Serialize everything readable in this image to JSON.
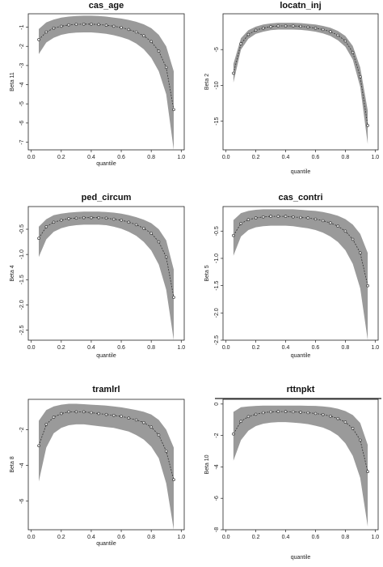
{
  "figure": {
    "colors": {
      "band": "#9a9a9a",
      "line": "#333333",
      "frame": "#222222",
      "background": "#ffffff"
    }
  },
  "chart_data": [
    {
      "type": "line",
      "title": "cas_age",
      "xlabel": "quantile",
      "ylabel": "Beta 11",
      "xlim": [
        -0.02,
        1.02
      ],
      "ylim": [
        -7.4,
        -0.3
      ],
      "xticks": [
        0.0,
        0.2,
        0.4,
        0.6,
        0.8,
        1.0
      ],
      "xtick_labels": [
        "0.0",
        "0.2",
        "0.4",
        "0.6",
        "0.8",
        "1.0"
      ],
      "yticks": [
        -1,
        -2,
        -3,
        -4,
        -5,
        -6,
        -7
      ],
      "ytick_labels": [
        "-1",
        "-2",
        "-3",
        "-4",
        "-5",
        "-6",
        "-7"
      ],
      "x": [
        0.05,
        0.1,
        0.15,
        0.2,
        0.25,
        0.3,
        0.35,
        0.4,
        0.45,
        0.5,
        0.55,
        0.6,
        0.65,
        0.7,
        0.75,
        0.8,
        0.85,
        0.9,
        0.95
      ],
      "series": [
        {
          "values": [
            -1.65,
            -1.25,
            -1.05,
            -0.95,
            -0.88,
            -0.85,
            -0.84,
            -0.84,
            -0.86,
            -0.9,
            -0.95,
            -1.02,
            -1.12,
            -1.25,
            -1.45,
            -1.75,
            -2.25,
            -3.1,
            -5.3
          ]
        }
      ],
      "band_upper": [
        -1.1,
        -0.75,
        -0.6,
        -0.5,
        -0.45,
        -0.42,
        -0.4,
        -0.4,
        -0.42,
        -0.45,
        -0.5,
        -0.55,
        -0.62,
        -0.72,
        -0.85,
        -1.05,
        -1.4,
        -2.0,
        -3.3
      ],
      "band_lower": [
        -2.4,
        -1.8,
        -1.55,
        -1.4,
        -1.32,
        -1.28,
        -1.27,
        -1.27,
        -1.3,
        -1.35,
        -1.42,
        -1.52,
        -1.65,
        -1.85,
        -2.15,
        -2.6,
        -3.3,
        -4.5,
        -7.4
      ]
    },
    {
      "type": "line",
      "title": "locatn_inj",
      "xlabel": "quantile",
      "ylabel": "Beta 2",
      "xlim": [
        -0.02,
        1.02
      ],
      "ylim": [
        -19,
        0
      ],
      "xticks": [
        0.0,
        0.2,
        0.4,
        0.6,
        0.8,
        1.0
      ],
      "xtick_labels": [
        "0.0",
        "0.2",
        "0.4",
        "0.6",
        "0.8",
        "1.0"
      ],
      "yticks": [
        -5,
        -10,
        -15
      ],
      "ytick_labels": [
        "-5",
        "-10",
        "-15"
      ],
      "x": [
        0.05,
        0.1,
        0.15,
        0.2,
        0.25,
        0.3,
        0.35,
        0.4,
        0.45,
        0.5,
        0.55,
        0.6,
        0.65,
        0.7,
        0.75,
        0.8,
        0.85,
        0.9,
        0.95
      ],
      "series": [
        {
          "values": [
            -8.3,
            -4.2,
            -2.9,
            -2.3,
            -2.0,
            -1.8,
            -1.7,
            -1.7,
            -1.7,
            -1.75,
            -1.85,
            -2.0,
            -2.2,
            -2.5,
            -3.0,
            -3.8,
            -5.4,
            -8.8,
            -15.6
          ]
        }
      ],
      "band_upper": [
        -7.0,
        -3.4,
        -2.3,
        -1.8,
        -1.5,
        -1.35,
        -1.25,
        -1.25,
        -1.25,
        -1.3,
        -1.4,
        -1.5,
        -1.7,
        -1.95,
        -2.4,
        -3.1,
        -4.5,
        -7.5,
        -13.5
      ],
      "band_lower": [
        -9.6,
        -5.0,
        -3.5,
        -2.8,
        -2.5,
        -2.3,
        -2.2,
        -2.2,
        -2.2,
        -2.25,
        -2.35,
        -2.5,
        -2.75,
        -3.1,
        -3.7,
        -4.6,
        -6.4,
        -10.2,
        -18.2
      ]
    },
    {
      "type": "line",
      "title": "ped_circum",
      "xlabel": "quantile",
      "ylabel": "Beta 4",
      "xlim": [
        -0.02,
        1.02
      ],
      "ylim": [
        -2.7,
        -0.05
      ],
      "xticks": [
        0.0,
        0.2,
        0.4,
        0.6,
        0.8,
        1.0
      ],
      "xtick_labels": [
        "0.0",
        "0.2",
        "0.4",
        "0.6",
        "0.8",
        "1.0"
      ],
      "yticks": [
        -0.5,
        -1.0,
        -1.5,
        -2.0,
        -2.5
      ],
      "ytick_labels": [
        "-0.5",
        "-1.0",
        "-1.5",
        "-2.0",
        "-2.5"
      ],
      "x": [
        0.05,
        0.1,
        0.15,
        0.2,
        0.25,
        0.3,
        0.35,
        0.4,
        0.45,
        0.5,
        0.55,
        0.6,
        0.65,
        0.7,
        0.75,
        0.8,
        0.85,
        0.9,
        0.95
      ],
      "series": [
        {
          "values": [
            -0.68,
            -0.45,
            -0.36,
            -0.32,
            -0.29,
            -0.28,
            -0.27,
            -0.27,
            -0.27,
            -0.28,
            -0.3,
            -0.32,
            -0.36,
            -0.41,
            -0.48,
            -0.58,
            -0.75,
            -1.05,
            -1.85
          ]
        }
      ],
      "band_upper": [
        -0.45,
        -0.3,
        -0.22,
        -0.19,
        -0.17,
        -0.16,
        -0.15,
        -0.15,
        -0.15,
        -0.16,
        -0.17,
        -0.19,
        -0.22,
        -0.26,
        -0.31,
        -0.38,
        -0.5,
        -0.72,
        -1.3
      ],
      "band_lower": [
        -1.05,
        -0.7,
        -0.55,
        -0.48,
        -0.44,
        -0.42,
        -0.41,
        -0.41,
        -0.41,
        -0.42,
        -0.45,
        -0.49,
        -0.55,
        -0.63,
        -0.75,
        -0.92,
        -1.2,
        -1.7,
        -2.7
      ]
    },
    {
      "type": "line",
      "title": "cas_contri",
      "xlabel": "quantile",
      "ylabel": "Beta 5",
      "xlim": [
        -0.02,
        1.02
      ],
      "ylim": [
        -2.5,
        -0.05
      ],
      "xticks": [
        0.0,
        0.2,
        0.4,
        0.6,
        0.8,
        1.0
      ],
      "xtick_labels": [
        "0.0",
        "0.2",
        "0.4",
        "0.6",
        "0.8",
        "1.0"
      ],
      "yticks": [
        -0.5,
        -1.0,
        -1.5,
        -2.0,
        -2.5
      ],
      "ytick_labels": [
        "-0.5",
        "-1.0",
        "-1.5",
        "-2.0",
        "-2.5"
      ],
      "x": [
        0.05,
        0.1,
        0.15,
        0.2,
        0.25,
        0.3,
        0.35,
        0.4,
        0.45,
        0.5,
        0.55,
        0.6,
        0.65,
        0.7,
        0.75,
        0.8,
        0.85,
        0.9,
        0.95
      ],
      "series": [
        {
          "values": [
            -0.58,
            -0.36,
            -0.29,
            -0.26,
            -0.24,
            -0.23,
            -0.23,
            -0.23,
            -0.24,
            -0.25,
            -0.26,
            -0.28,
            -0.31,
            -0.35,
            -0.41,
            -0.5,
            -0.65,
            -0.9,
            -1.5
          ]
        }
      ],
      "band_upper": [
        -0.3,
        -0.17,
        -0.13,
        -0.11,
        -0.1,
        -0.1,
        -0.1,
        -0.1,
        -0.1,
        -0.11,
        -0.12,
        -0.13,
        -0.15,
        -0.18,
        -0.22,
        -0.28,
        -0.38,
        -0.55,
        -0.9
      ],
      "band_lower": [
        -0.95,
        -0.6,
        -0.48,
        -0.43,
        -0.41,
        -0.4,
        -0.4,
        -0.4,
        -0.41,
        -0.43,
        -0.45,
        -0.48,
        -0.53,
        -0.6,
        -0.7,
        -0.85,
        -1.1,
        -1.55,
        -2.5
      ]
    },
    {
      "type": "line",
      "title": "tramlrl",
      "xlabel": "quantile",
      "ylabel": "Beta 8",
      "xlim": [
        -0.02,
        1.02
      ],
      "ylim": [
        -7.6,
        -0.3
      ],
      "xticks": [
        0.0,
        0.2,
        0.4,
        0.6,
        0.8,
        1.0
      ],
      "xtick_labels": [
        "0.0",
        "0.2",
        "0.4",
        "0.6",
        "0.8",
        "1.0"
      ],
      "yticks": [
        -2,
        -4,
        -6
      ],
      "ytick_labels": [
        "-2",
        "-4",
        "-6"
      ],
      "x": [
        0.05,
        0.1,
        0.15,
        0.2,
        0.25,
        0.3,
        0.35,
        0.4,
        0.45,
        0.5,
        0.55,
        0.6,
        0.65,
        0.7,
        0.75,
        0.8,
        0.85,
        0.9,
        0.95
      ],
      "series": [
        {
          "values": [
            -2.9,
            -1.7,
            -1.3,
            -1.1,
            -1.0,
            -1.0,
            -1.0,
            -1.05,
            -1.1,
            -1.15,
            -1.2,
            -1.25,
            -1.35,
            -1.45,
            -1.6,
            -1.85,
            -2.3,
            -3.2,
            -4.8
          ]
        }
      ],
      "band_upper": [
        -1.5,
        -0.9,
        -0.7,
        -0.6,
        -0.55,
        -0.55,
        -0.57,
        -0.6,
        -0.62,
        -0.65,
        -0.7,
        -0.75,
        -0.82,
        -0.9,
        -1.0,
        -1.15,
        -1.45,
        -2.0,
        -3.0
      ],
      "band_lower": [
        -4.9,
        -3.0,
        -2.2,
        -1.9,
        -1.75,
        -1.7,
        -1.7,
        -1.75,
        -1.8,
        -1.85,
        -1.9,
        -2.0,
        -2.1,
        -2.3,
        -2.55,
        -2.95,
        -3.6,
        -5.0,
        -7.6
      ]
    },
    {
      "type": "line",
      "title": "rttnpkt",
      "xlabel": "quantile",
      "ylabel": "Beta 10",
      "xlim": [
        -0.02,
        1.02
      ],
      "ylim": [
        -8.0,
        0.3
      ],
      "xticks": [
        0.0,
        0.2,
        0.4,
        0.6,
        0.8,
        1.0
      ],
      "xtick_labels": [
        "0.0",
        "0.2",
        "0.4",
        "0.6",
        "0.8",
        "1.0"
      ],
      "yticks": [
        0,
        -2,
        -4,
        -6,
        -8
      ],
      "ytick_labels": [
        "0",
        "-2",
        "-4",
        "-6",
        "-8"
      ],
      "x": [
        0.05,
        0.1,
        0.15,
        0.2,
        0.25,
        0.3,
        0.35,
        0.4,
        0.45,
        0.5,
        0.55,
        0.6,
        0.65,
        0.7,
        0.75,
        0.8,
        0.85,
        0.9,
        0.95
      ],
      "series": [
        {
          "values": [
            -1.9,
            -1.1,
            -0.8,
            -0.65,
            -0.55,
            -0.5,
            -0.48,
            -0.48,
            -0.5,
            -0.52,
            -0.55,
            -0.6,
            -0.67,
            -0.77,
            -0.92,
            -1.15,
            -1.55,
            -2.3,
            -4.3
          ]
        }
      ],
      "band_upper": [
        -0.5,
        -0.2,
        -0.15,
        -0.12,
        -0.1,
        -0.1,
        -0.1,
        -0.1,
        -0.1,
        -0.1,
        -0.11,
        -0.12,
        -0.15,
        -0.2,
        -0.3,
        -0.45,
        -0.7,
        -1.2,
        -2.6
      ],
      "band_lower": [
        -3.6,
        -2.3,
        -1.7,
        -1.4,
        -1.25,
        -1.18,
        -1.15,
        -1.15,
        -1.18,
        -1.22,
        -1.28,
        -1.38,
        -1.5,
        -1.7,
        -2.0,
        -2.5,
        -3.3,
        -4.7,
        -7.8
      ]
    }
  ]
}
